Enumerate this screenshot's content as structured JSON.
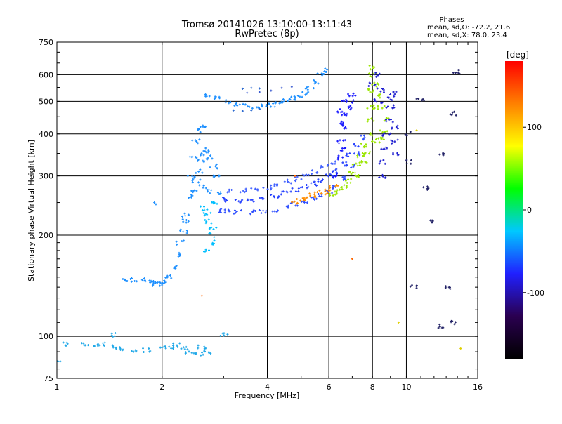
{
  "header": {
    "title": "Tromsø 20141026 13:10:00-13:11:43",
    "subtitle": "RwPretec (8p)"
  },
  "stats": {
    "heading": "Phases",
    "line_o": "mean, sd,O: -72.2, 21.6",
    "line_x": "mean, sd,X:  78.0, 23.4"
  },
  "chart_data": {
    "type": "scatter",
    "title": "Tromsø 20141026 13:10:00-13:11:43",
    "subtitle": "RwPretec (8p)",
    "xlabel": "Frequency [MHz]",
    "ylabel": "Stationary phase Virtual Height [km]",
    "x_scale": "log",
    "y_scale": "log",
    "xlim": [
      1,
      16
    ],
    "ylim": [
      75,
      750
    ],
    "x_ticks": [
      1,
      2,
      4,
      6,
      8,
      10,
      16
    ],
    "y_ticks": [
      75,
      100,
      200,
      300,
      400,
      500,
      600,
      750
    ],
    "x_grid": [
      2,
      4,
      6,
      8,
      10
    ],
    "y_grid": [
      100,
      200,
      300,
      400,
      500,
      600
    ],
    "grid": true,
    "colorbar": {
      "label": "[deg]",
      "range": [
        -180,
        180
      ],
      "ticks": [
        100,
        0,
        -100
      ],
      "colors": [
        "#000000",
        "#2a0050",
        "#2020ff",
        "#00c8ff",
        "#00ff00",
        "#ffff00",
        "#ff8000",
        "#ff0000"
      ]
    },
    "series": [
      {
        "color": "#1e90ff",
        "points": [
          [
            2.35,
            230
          ],
          [
            2.4,
            260
          ],
          [
            2.42,
            300
          ],
          [
            2.45,
            340
          ],
          [
            2.5,
            380
          ],
          [
            2.55,
            410
          ],
          [
            2.6,
            420
          ],
          [
            2.45,
            270
          ],
          [
            2.5,
            290
          ],
          [
            2.55,
            310
          ],
          [
            2.6,
            330
          ],
          [
            2.65,
            350
          ],
          [
            2.7,
            360
          ],
          [
            2.75,
            340
          ],
          [
            2.8,
            320
          ],
          [
            2.85,
            300
          ],
          [
            2.6,
            280
          ],
          [
            2.7,
            270
          ],
          [
            2.9,
            265
          ]
        ]
      },
      {
        "color": "#00bfff",
        "points": [
          [
            2.7,
            180
          ],
          [
            2.75,
            190
          ],
          [
            2.8,
            200
          ],
          [
            2.78,
            210
          ],
          [
            2.72,
            220
          ],
          [
            2.68,
            230
          ],
          [
            2.65,
            240
          ],
          [
            2.8,
            250
          ]
        ]
      },
      {
        "color": "#1e90ff",
        "points": [
          [
            1.55,
            148
          ],
          [
            1.65,
            147
          ],
          [
            1.75,
            147
          ],
          [
            1.85,
            145
          ],
          [
            1.9,
            143
          ],
          [
            1.95,
            143
          ],
          [
            2.0,
            145
          ],
          [
            2.1,
            150
          ],
          [
            2.15,
            160
          ],
          [
            2.2,
            175
          ],
          [
            2.25,
            190
          ],
          [
            2.3,
            205
          ],
          [
            2.35,
            220
          ]
        ]
      },
      {
        "color": "#3050ff",
        "points": [
          [
            2.9,
            237
          ],
          [
            3.1,
            235
          ],
          [
            3.3,
            234
          ],
          [
            3.6,
            234
          ],
          [
            3.9,
            235
          ],
          [
            4.2,
            238
          ],
          [
            4.5,
            242
          ],
          [
            4.8,
            247
          ],
          [
            5.1,
            252
          ],
          [
            5.4,
            257
          ],
          [
            5.7,
            262
          ],
          [
            6.0,
            268
          ],
          [
            6.3,
            278
          ],
          [
            6.6,
            295
          ],
          [
            6.9,
            320
          ],
          [
            7.2,
            350
          ],
          [
            7.5,
            390
          ]
        ]
      },
      {
        "color": "#2540ff",
        "points": [
          [
            3.0,
            255
          ],
          [
            3.3,
            253
          ],
          [
            3.6,
            254
          ],
          [
            3.9,
            257
          ],
          [
            4.2,
            262
          ],
          [
            4.5,
            267
          ],
          [
            4.8,
            272
          ],
          [
            5.1,
            278
          ],
          [
            5.4,
            285
          ],
          [
            5.7,
            292
          ],
          [
            6.0,
            300
          ],
          [
            6.3,
            310
          ],
          [
            6.6,
            325
          ],
          [
            6.9,
            345
          ],
          [
            7.2,
            370
          ]
        ]
      },
      {
        "color": "#4060ff",
        "points": [
          [
            3.1,
            272
          ],
          [
            3.4,
            272
          ],
          [
            3.7,
            274
          ],
          [
            4.0,
            277
          ],
          [
            4.3,
            282
          ],
          [
            4.6,
            288
          ],
          [
            4.9,
            294
          ],
          [
            5.2,
            300
          ],
          [
            5.5,
            308
          ],
          [
            5.8,
            317
          ],
          [
            6.1,
            328
          ]
        ]
      },
      {
        "color": "#ff8c00",
        "points": [
          [
            4.8,
            250
          ],
          [
            5.0,
            255
          ],
          [
            5.2,
            258
          ],
          [
            5.4,
            262
          ],
          [
            5.6,
            265
          ],
          [
            5.8,
            268
          ],
          [
            6.0,
            272
          ],
          [
            6.2,
            278
          ]
        ]
      },
      {
        "color": "#9be600",
        "points": [
          [
            6.2,
            265
          ],
          [
            6.4,
            270
          ],
          [
            6.6,
            278
          ],
          [
            6.8,
            290
          ],
          [
            7.0,
            305
          ],
          [
            7.2,
            325
          ],
          [
            7.4,
            345
          ],
          [
            7.6,
            370
          ],
          [
            7.8,
            400
          ],
          [
            7.9,
            440
          ],
          [
            7.95,
            480
          ],
          [
            8.0,
            540
          ],
          [
            8.0,
            600
          ],
          [
            7.95,
            630
          ],
          [
            8.2,
            380
          ],
          [
            8.4,
            390
          ],
          [
            8.6,
            410
          ],
          [
            8.8,
            440
          ],
          [
            8.5,
            480
          ],
          [
            8.2,
            520
          ],
          [
            8.1,
            560
          ],
          [
            7.5,
            330
          ],
          [
            7.7,
            350
          ],
          [
            7.3,
            300
          ]
        ]
      },
      {
        "color": "#1a1aff",
        "points": [
          [
            6.3,
            300
          ],
          [
            6.4,
            340
          ],
          [
            6.5,
            380
          ],
          [
            6.6,
            420
          ],
          [
            6.7,
            460
          ],
          [
            6.8,
            480
          ],
          [
            6.9,
            500
          ],
          [
            7.0,
            520
          ],
          [
            6.6,
            500
          ],
          [
            6.5,
            470
          ],
          [
            6.45,
            430
          ],
          [
            6.55,
            360
          ]
        ]
      },
      {
        "color": "#2020d0",
        "points": [
          [
            8.5,
            300
          ],
          [
            8.6,
            330
          ],
          [
            8.7,
            360
          ],
          [
            8.8,
            400
          ],
          [
            8.9,
            440
          ],
          [
            9.0,
            480
          ],
          [
            9.1,
            510
          ],
          [
            9.2,
            530
          ],
          [
            9.2,
            380
          ],
          [
            9.3,
            420
          ],
          [
            9.25,
            350
          ],
          [
            8.3,
            500
          ],
          [
            8.4,
            540
          ],
          [
            8.3,
            600
          ],
          [
            8.0,
            560
          ]
        ]
      },
      {
        "color": "#1e90ff",
        "points": [
          [
            2.7,
            520
          ],
          [
            2.9,
            510
          ],
          [
            3.1,
            500
          ],
          [
            3.3,
            490
          ],
          [
            3.5,
            485
          ],
          [
            3.7,
            482
          ],
          [
            3.9,
            483
          ],
          [
            4.1,
            487
          ],
          [
            4.3,
            493
          ],
          [
            4.5,
            500
          ],
          [
            4.7,
            510
          ],
          [
            4.9,
            520
          ],
          [
            5.1,
            530
          ],
          [
            5.3,
            545
          ],
          [
            5.5,
            570
          ],
          [
            5.7,
            600
          ],
          [
            5.9,
            620
          ]
        ]
      },
      {
        "color": "#2e6bd0",
        "points": [
          [
            3.2,
            470
          ],
          [
            3.4,
            468
          ],
          [
            3.6,
            470
          ],
          [
            3.8,
            474
          ]
        ]
      },
      {
        "color": "#2e6bd0",
        "points": [
          [
            3.4,
            545
          ],
          [
            3.6,
            548
          ],
          [
            3.8,
            546
          ]
        ]
      },
      {
        "color": "#3a5ad0",
        "points": [
          [
            3.5,
            530
          ],
          [
            3.8,
            533
          ],
          [
            4.1,
            538
          ],
          [
            4.4,
            548
          ],
          [
            4.7,
            552
          ]
        ]
      },
      {
        "color": "#20a8e8",
        "points": [
          [
            1.05,
            95
          ],
          [
            1.2,
            95
          ],
          [
            1.3,
            94
          ],
          [
            1.35,
            95
          ],
          [
            1.45,
            93
          ],
          [
            1.55,
            92
          ],
          [
            1.65,
            91
          ],
          [
            1.8,
            91
          ],
          [
            2.0,
            93
          ],
          [
            2.1,
            92
          ],
          [
            2.2,
            94
          ],
          [
            2.3,
            92
          ],
          [
            2.4,
            90
          ],
          [
            2.55,
            89
          ],
          [
            2.6,
            93
          ],
          [
            2.7,
            90
          ],
          [
            3.0,
            101
          ],
          [
            1.45,
            101
          ],
          [
            1.0,
            84
          ]
        ]
      },
      {
        "color": "#1e90ff",
        "points": [
          [
            1.9,
            250
          ],
          [
            1.92,
            247
          ]
        ]
      },
      {
        "color": "#222266",
        "points": [
          [
            10.5,
            140
          ],
          [
            11.0,
            510
          ],
          [
            11.5,
            275
          ],
          [
            12.0,
            220
          ],
          [
            12.5,
            107
          ],
          [
            13.5,
            110
          ],
          [
            13.0,
            140
          ],
          [
            14.0,
            610
          ],
          [
            13.5,
            460
          ],
          [
            12.6,
            350
          ],
          [
            10.2,
            330
          ],
          [
            10.1,
            400
          ]
        ]
      },
      {
        "color": "#e0d000",
        "points": [
          [
            9.5,
            110
          ],
          [
            10.7,
            410
          ],
          [
            14.3,
            92
          ]
        ]
      },
      {
        "color": "#ff6600",
        "points": [
          [
            2.6,
            132
          ],
          [
            7.0,
            170
          ],
          [
            4.8,
            300
          ]
        ]
      }
    ]
  }
}
